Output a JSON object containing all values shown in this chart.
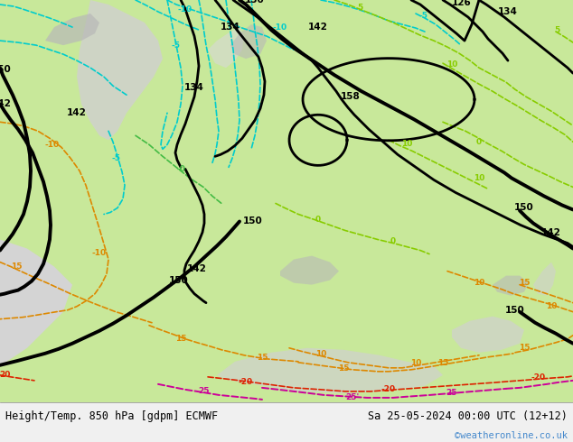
{
  "title_left": "Height/Temp. 850 hPa [gdpm] ECMWF",
  "title_right": "Sa 25-05-2024 00:00 UTC (12+12)",
  "watermark": "©weatheronline.co.uk",
  "footer_bg": "#f0f0f0",
  "watermark_color": "#4488cc",
  "footer_text_color": "#000000",
  "land_green": "#b8e890",
  "land_light": "#d0f0a0",
  "ocean_grey": "#d8d8d8",
  "mountain_grey": "#b0b0b0",
  "cyan_color": "#00cccc",
  "green_color": "#88cc00",
  "orange_color": "#dd8800",
  "red_color": "#dd2200",
  "magenta_color": "#cc0099",
  "black_contour": "#000000"
}
